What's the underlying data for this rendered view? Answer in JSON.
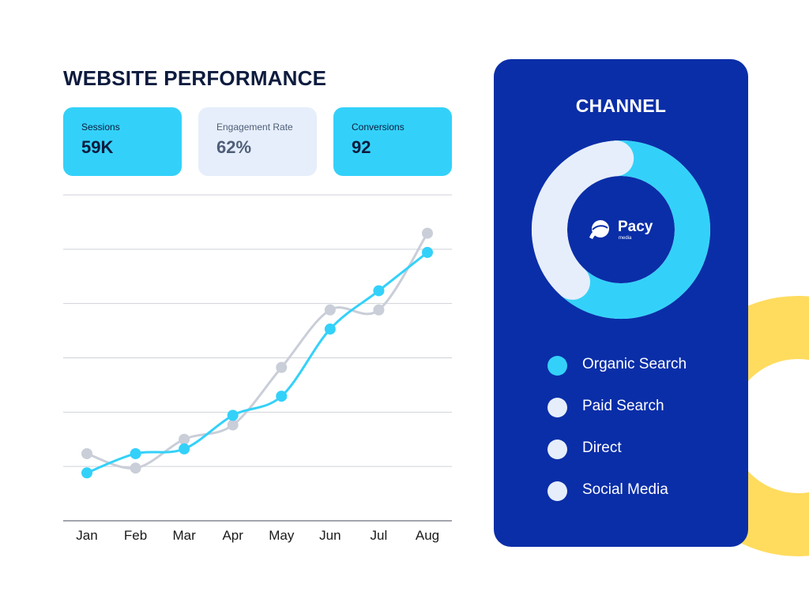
{
  "title": "WEBSITE PERFORMANCE",
  "kpis": [
    {
      "label": "Sessions",
      "value": "59K"
    },
    {
      "label": "Engagement Rate",
      "value": "62%"
    },
    {
      "label": "Conversions",
      "value": "92"
    }
  ],
  "colors": {
    "primary": "#33d1f9",
    "secondary": "#c9ced8",
    "panel": "#0a2ea8",
    "pale": "#e6eefb",
    "accent_yellow": "#ffdc5e"
  },
  "chart_data": [
    {
      "type": "line",
      "categories": [
        "Jan",
        "Feb",
        "Mar",
        "Apr",
        "May",
        "Jun",
        "Jul",
        "Aug"
      ],
      "series": [
        {
          "values": [
            1.0,
            1.4,
            1.5,
            2.2,
            2.6,
            4.0,
            4.8,
            5.6
          ]
        },
        {
          "values": [
            1.4,
            1.1,
            1.7,
            2.0,
            3.2,
            4.4,
            4.4,
            6.0
          ]
        }
      ],
      "ylim": [
        0,
        6.8
      ],
      "grid": true
    },
    {
      "type": "pie",
      "title": "CHANNEL",
      "labels": [
        "Organic Search",
        "Paid Search",
        "Direct",
        "Social Media"
      ],
      "values": [
        63,
        37,
        0,
        0
      ],
      "colors": [
        "#33d1f9",
        "#e6eefb",
        "#e6eefb",
        "#e6eefb"
      ]
    }
  ],
  "logo": {
    "name": "Pacy",
    "sub": "media"
  }
}
